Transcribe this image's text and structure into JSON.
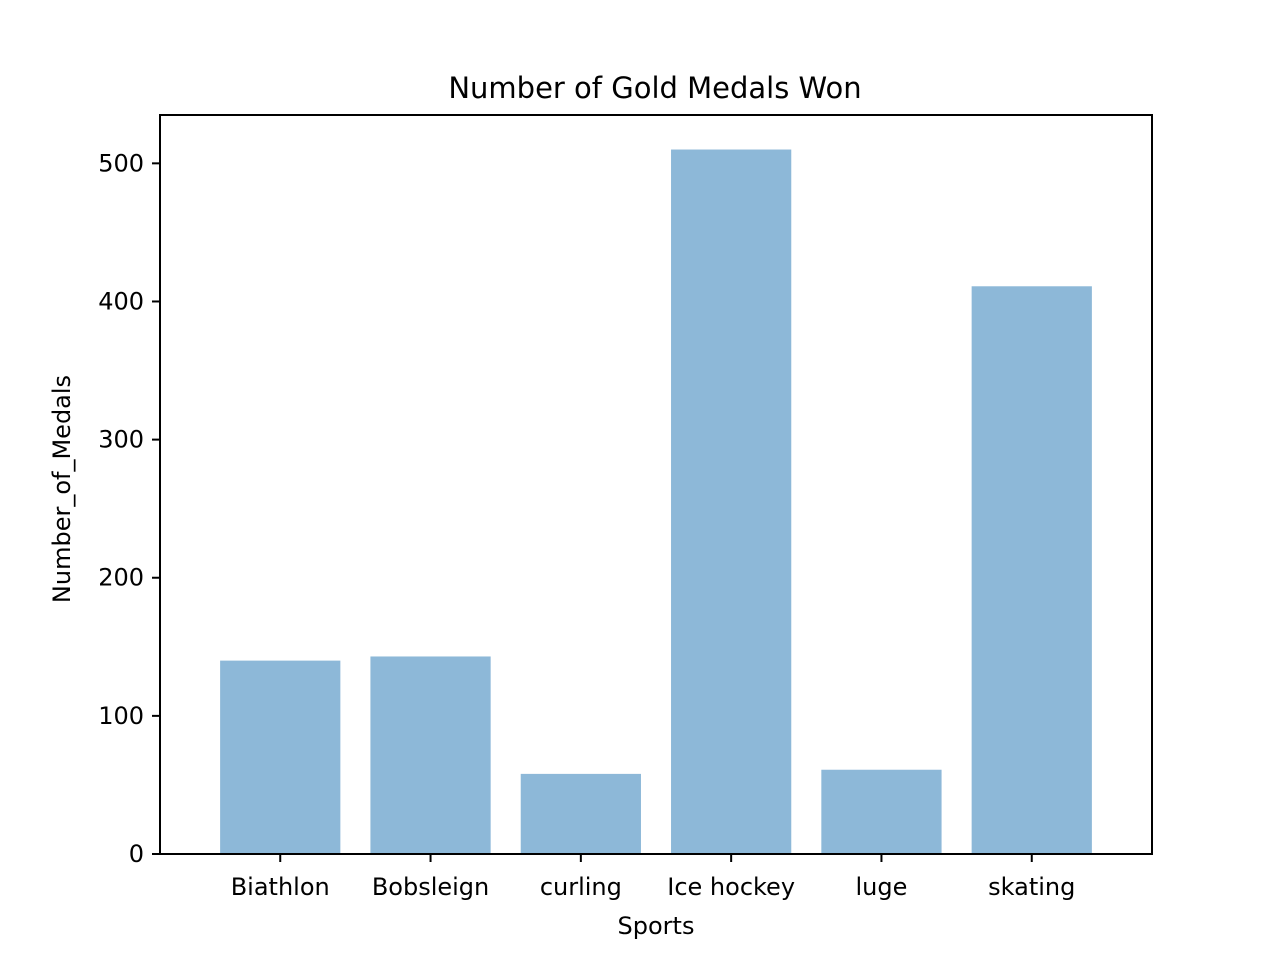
{
  "chart_data": {
    "type": "bar",
    "title": "Number of Gold Medals Won",
    "xlabel": "Sports",
    "ylabel": "Number_of_Medals",
    "categories": [
      "Biathlon",
      "Bobsleign",
      "curling",
      "Ice hockey",
      "luge",
      "skating"
    ],
    "values": [
      140,
      143,
      58,
      510,
      61,
      411
    ],
    "ylim": [
      0,
      535
    ],
    "yticks": [
      0,
      100,
      200,
      300,
      400,
      500
    ],
    "grid": false,
    "bar_color": "#8db8d8"
  }
}
